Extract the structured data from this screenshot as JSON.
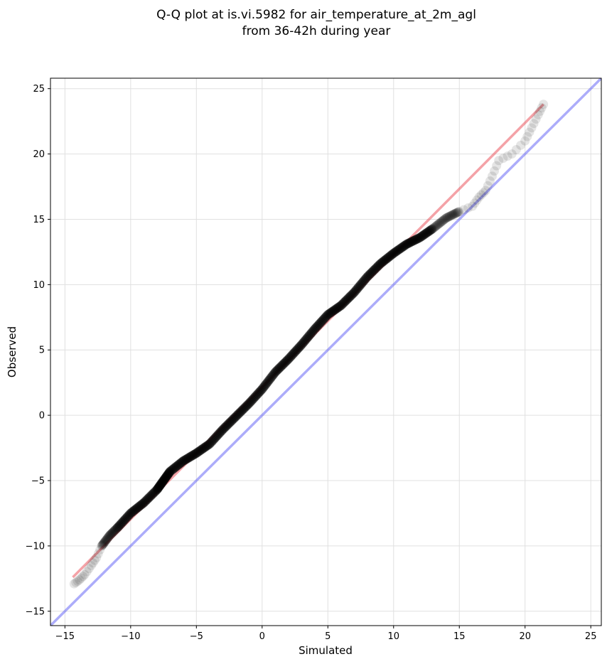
{
  "chart_data": {
    "type": "scatter",
    "title_lines": [
      "Q-Q plot at is.vi.5982 for air_temperature_at_2m_agl",
      "from 36-42h during year"
    ],
    "xlabel": "Simulated",
    "ylabel": "Observed",
    "xlim": [
      -16.1,
      25.8
    ],
    "ylim": [
      -16.1,
      25.8
    ],
    "xticks": [
      -15,
      -10,
      -5,
      0,
      5,
      10,
      15,
      20,
      25
    ],
    "yticks": [
      -15,
      -10,
      -5,
      0,
      5,
      10,
      15,
      20,
      25
    ],
    "tick_labels": [
      "−15",
      "−10",
      "−5",
      "0",
      "5",
      "10",
      "15",
      "20",
      "25"
    ],
    "grid": true,
    "colors": {
      "points": "#000000",
      "fit_line": "#e6303c",
      "identity_line": "#5a5af5",
      "grid": "#e0e0e0"
    },
    "identity_line": {
      "x": [
        -16.1,
        25.8
      ],
      "y": [
        -16.1,
        25.8
      ]
    },
    "fit_line": {
      "x": [
        -14.4,
        21.4
      ],
      "y": [
        -12.4,
        23.8
      ]
    },
    "quantiles_anchor": [
      [
        -14.3,
        -12.9
      ],
      [
        -13.9,
        -12.6
      ],
      [
        -13.5,
        -12.2
      ],
      [
        -13.0,
        -11.5
      ],
      [
        -12.6,
        -10.9
      ],
      [
        -12.2,
        -10.0
      ],
      [
        -11.6,
        -9.2
      ],
      [
        -11.0,
        -8.6
      ],
      [
        -10.0,
        -7.5
      ],
      [
        -9.0,
        -6.7
      ],
      [
        -8.0,
        -5.7
      ],
      [
        -7.5,
        -5.0
      ],
      [
        -7.0,
        -4.3
      ],
      [
        -6.0,
        -3.5
      ],
      [
        -5.0,
        -2.9
      ],
      [
        -4.0,
        -2.2
      ],
      [
        -3.0,
        -1.1
      ],
      [
        -2.0,
        -0.1
      ],
      [
        -1.0,
        0.9
      ],
      [
        0.0,
        2.0
      ],
      [
        1.0,
        3.3
      ],
      [
        2.0,
        4.3
      ],
      [
        3.0,
        5.4
      ],
      [
        4.0,
        6.6
      ],
      [
        5.0,
        7.7
      ],
      [
        6.0,
        8.4
      ],
      [
        7.0,
        9.4
      ],
      [
        8.0,
        10.6
      ],
      [
        9.0,
        11.6
      ],
      [
        10.0,
        12.4
      ],
      [
        11.0,
        13.1
      ],
      [
        12.0,
        13.6
      ],
      [
        13.0,
        14.3
      ],
      [
        14.0,
        15.1
      ],
      [
        15.0,
        15.6
      ],
      [
        16.0,
        16.0
      ],
      [
        16.5,
        16.7
      ],
      [
        17.0,
        17.2
      ],
      [
        17.5,
        18.3
      ],
      [
        18.0,
        19.5
      ],
      [
        19.0,
        20.0
      ],
      [
        20.0,
        21.0
      ],
      [
        20.5,
        22.0
      ],
      [
        21.0,
        23.0
      ],
      [
        21.4,
        23.8
      ]
    ]
  }
}
